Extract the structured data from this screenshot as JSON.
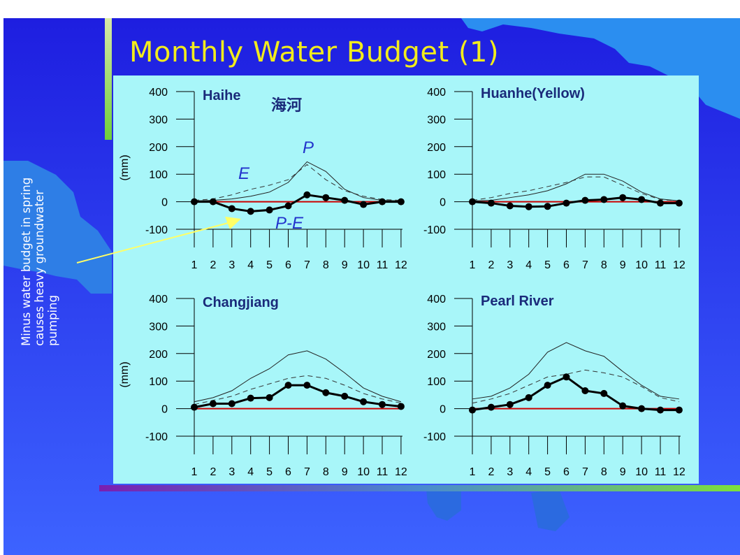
{
  "slide": {
    "title": "Monthly Water Budget (1)",
    "side_note": "Minus water budget in spring causes heavy groundwater pumping",
    "colors": {
      "background_top": "#1f1fe0",
      "background_bottom": "#3a5cff",
      "panel": "#a8f6f9",
      "title": "#f2ec1c",
      "zero_line": "#cc0000",
      "curve_labels": "#2233cc",
      "arrow": "#ffff66"
    }
  },
  "chart_data": [
    {
      "type": "line",
      "title": "Haihe",
      "title_cjk": "海河",
      "ylabel": "(mm)",
      "ylim": [
        -100,
        400
      ],
      "yticks": [
        -100,
        0,
        100,
        200,
        300,
        400
      ],
      "categories": [
        "1",
        "2",
        "3",
        "4",
        "5",
        "6",
        "7",
        "8",
        "9",
        "10",
        "11",
        "12"
      ],
      "series": [
        {
          "name": "P",
          "style": "thin-solid",
          "values": [
            3,
            5,
            10,
            20,
            35,
            70,
            145,
            110,
            45,
            15,
            5,
            3
          ]
        },
        {
          "name": "E",
          "style": "dashed",
          "values": [
            5,
            10,
            25,
            45,
            60,
            80,
            135,
            80,
            40,
            20,
            8,
            5
          ]
        },
        {
          "name": "P-E",
          "style": "thick-dots",
          "values": [
            0,
            0,
            -25,
            -35,
            -30,
            -15,
            25,
            15,
            5,
            -10,
            0,
            0
          ]
        }
      ],
      "annotations": [
        "P",
        "E",
        "P-E"
      ]
    },
    {
      "type": "line",
      "title": "Huanhe(Yellow)",
      "ylabel": "",
      "ylim": [
        -100,
        400
      ],
      "yticks": [
        -100,
        0,
        100,
        200,
        300,
        400
      ],
      "categories": [
        "1",
        "2",
        "3",
        "4",
        "5",
        "6",
        "7",
        "8",
        "9",
        "10",
        "11",
        "12"
      ],
      "series": [
        {
          "name": "P",
          "style": "thin-solid",
          "values": [
            3,
            5,
            15,
            25,
            40,
            65,
            100,
            100,
            75,
            35,
            10,
            3
          ]
        },
        {
          "name": "E",
          "style": "dashed",
          "values": [
            5,
            15,
            30,
            40,
            55,
            70,
            90,
            90,
            60,
            30,
            8,
            3
          ]
        },
        {
          "name": "P-E",
          "style": "thick-dots",
          "values": [
            0,
            -5,
            -15,
            -18,
            -17,
            -5,
            5,
            8,
            15,
            8,
            -5,
            -5
          ]
        }
      ]
    },
    {
      "type": "line",
      "title": "Changjiang",
      "ylabel": "(mm)",
      "ylim": [
        -100,
        400
      ],
      "yticks": [
        -100,
        0,
        100,
        200,
        300,
        400
      ],
      "categories": [
        "1",
        "2",
        "3",
        "4",
        "5",
        "6",
        "7",
        "8",
        "9",
        "10",
        "11",
        "12"
      ],
      "series": [
        {
          "name": "P",
          "style": "thin-solid",
          "values": [
            25,
            40,
            65,
            110,
            145,
            195,
            210,
            180,
            130,
            75,
            45,
            25
          ]
        },
        {
          "name": "E",
          "style": "dashed",
          "values": [
            15,
            30,
            45,
            70,
            90,
            110,
            120,
            110,
            85,
            55,
            35,
            20
          ]
        },
        {
          "name": "P-E",
          "style": "thick-dots",
          "values": [
            5,
            18,
            18,
            38,
            40,
            85,
            85,
            58,
            45,
            25,
            15,
            8
          ]
        }
      ]
    },
    {
      "type": "line",
      "title": "Pearl River",
      "ylabel": "",
      "ylim": [
        -100,
        400
      ],
      "yticks": [
        -100,
        0,
        100,
        200,
        300,
        400
      ],
      "categories": [
        "1",
        "2",
        "3",
        "4",
        "5",
        "6",
        "7",
        "8",
        "9",
        "10",
        "11",
        "12"
      ],
      "series": [
        {
          "name": "P",
          "style": "thin-solid",
          "values": [
            35,
            45,
            75,
            125,
            205,
            240,
            210,
            190,
            135,
            85,
            45,
            35
          ]
        },
        {
          "name": "E",
          "style": "dashed",
          "values": [
            20,
            35,
            55,
            85,
            115,
            125,
            140,
            130,
            115,
            80,
            40,
            25
          ]
        },
        {
          "name": "P-E",
          "style": "thick-dots",
          "values": [
            -5,
            5,
            15,
            40,
            85,
            115,
            65,
            55,
            10,
            0,
            -5,
            -5
          ]
        }
      ]
    }
  ]
}
